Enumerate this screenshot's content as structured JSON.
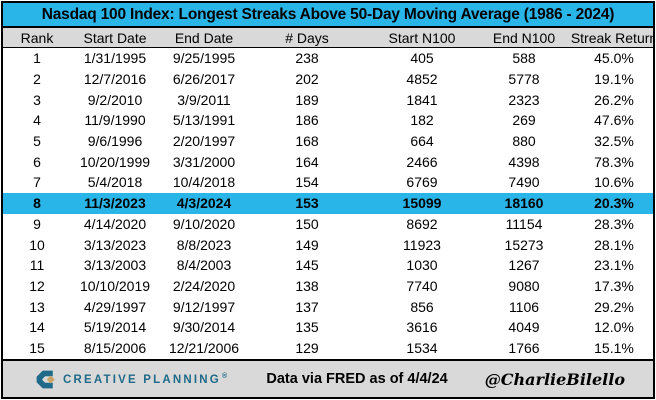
{
  "chart_data": {
    "type": "table",
    "title": "Nasdaq 100 Index: Longest Streaks Above 50-Day Moving Average (1986 - 2024)",
    "columns": [
      "Rank",
      "Start Date",
      "End Date",
      "# Days",
      "Start N100",
      "End N100",
      "Streak Return"
    ],
    "rows": [
      [
        "1",
        "1/31/1995",
        "9/25/1995",
        "238",
        "405",
        "588",
        "45.0%"
      ],
      [
        "2",
        "12/7/2016",
        "6/26/2017",
        "202",
        "4852",
        "5778",
        "19.1%"
      ],
      [
        "3",
        "9/2/2010",
        "3/9/2011",
        "189",
        "1841",
        "2323",
        "26.2%"
      ],
      [
        "4",
        "11/9/1990",
        "5/13/1991",
        "186",
        "182",
        "269",
        "47.6%"
      ],
      [
        "5",
        "9/6/1996",
        "2/20/1997",
        "168",
        "664",
        "880",
        "32.5%"
      ],
      [
        "6",
        "10/20/1999",
        "3/31/2000",
        "164",
        "2466",
        "4398",
        "78.3%"
      ],
      [
        "7",
        "5/4/2018",
        "10/4/2018",
        "154",
        "6769",
        "7490",
        "10.6%"
      ],
      [
        "8",
        "11/3/2023",
        "4/3/2024",
        "153",
        "15099",
        "18160",
        "20.3%"
      ],
      [
        "9",
        "4/14/2020",
        "9/10/2020",
        "150",
        "8692",
        "11154",
        "28.3%"
      ],
      [
        "10",
        "3/13/2023",
        "8/8/2023",
        "149",
        "11923",
        "15273",
        "28.1%"
      ],
      [
        "11",
        "3/13/2003",
        "8/4/2003",
        "145",
        "1030",
        "1267",
        "23.1%"
      ],
      [
        "12",
        "10/10/2019",
        "2/24/2020",
        "138",
        "7740",
        "9080",
        "17.3%"
      ],
      [
        "13",
        "4/29/1997",
        "9/12/1997",
        "137",
        "856",
        "1106",
        "29.2%"
      ],
      [
        "14",
        "5/19/2014",
        "9/30/2014",
        "135",
        "3616",
        "4049",
        "12.0%"
      ],
      [
        "15",
        "8/15/2006",
        "12/21/2006",
        "129",
        "1534",
        "1766",
        "15.1%"
      ]
    ],
    "highlighted_row_rank": "8"
  },
  "footer": {
    "brand": "CREATIVE PLANNING",
    "brand_mark": "®",
    "source": "Data via FRED as of 4/4/24",
    "attribution": "@CharlieBilello"
  },
  "colors": {
    "accent_cyan": "#2ab5e8",
    "header_gray": "#d9d9d9",
    "brand_teal": "#1f6a88",
    "brand_gold": "#c9a567"
  }
}
